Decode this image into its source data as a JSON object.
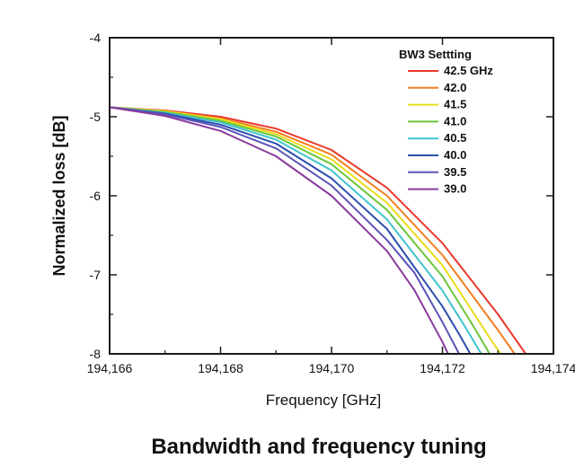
{
  "chart_data": {
    "type": "line",
    "title": "",
    "caption": "Bandwidth and frequency tuning",
    "xlabel": "Frequency  [GHz]",
    "ylabel": "Normalized loss [dB]",
    "xlim": [
      194166,
      194174
    ],
    "ylim": [
      -8,
      -4
    ],
    "xticks": [
      194166,
      194168,
      194170,
      194172,
      194174
    ],
    "xtick_labels": [
      "194,166",
      "194,168",
      "194,170",
      "194,172",
      "194,174"
    ],
    "yticks": [
      -8,
      -7,
      -6,
      -5,
      -4
    ],
    "ytick_labels": [
      "-8",
      "-7",
      "-6",
      "-5",
      "-4"
    ],
    "grid": false,
    "legend": {
      "title": "BW3 Settting",
      "position": "top-right"
    },
    "series": [
      {
        "name": "42.5 GHz",
        "color": "#e8392b",
        "points": [
          [
            194166,
            -4.88
          ],
          [
            194167,
            -4.92
          ],
          [
            194168,
            -5.0
          ],
          [
            194169,
            -5.15
          ],
          [
            194170,
            -5.42
          ],
          [
            194171,
            -5.9
          ],
          [
            194172,
            -6.6
          ],
          [
            194173,
            -7.5
          ],
          [
            194173.5,
            -8.0
          ]
        ]
      },
      {
        "name": "42.0",
        "color": "#f47d20",
        "points": [
          [
            194166,
            -4.88
          ],
          [
            194167,
            -4.93
          ],
          [
            194168,
            -5.02
          ],
          [
            194169,
            -5.19
          ],
          [
            194170,
            -5.48
          ],
          [
            194171,
            -6.0
          ],
          [
            194172,
            -6.75
          ],
          [
            194173,
            -7.7
          ],
          [
            194173.3,
            -8.0
          ]
        ]
      },
      {
        "name": "41.5",
        "color": "#e9dc1d",
        "points": [
          [
            194166,
            -4.88
          ],
          [
            194167,
            -4.93
          ],
          [
            194168,
            -5.03
          ],
          [
            194169,
            -5.22
          ],
          [
            194170,
            -5.54
          ],
          [
            194171,
            -6.09
          ],
          [
            194172,
            -6.88
          ],
          [
            194172.9,
            -7.85
          ],
          [
            194173.05,
            -8.0
          ]
        ]
      },
      {
        "name": "41.0",
        "color": "#6cc63a",
        "points": [
          [
            194166,
            -4.88
          ],
          [
            194167,
            -4.94
          ],
          [
            194168,
            -5.05
          ],
          [
            194169,
            -5.25
          ],
          [
            194170,
            -5.6
          ],
          [
            194171,
            -6.18
          ],
          [
            194172,
            -7.02
          ],
          [
            194172.6,
            -7.7
          ],
          [
            194172.85,
            -8.0
          ]
        ]
      },
      {
        "name": "40.5",
        "color": "#3fc3cf",
        "points": [
          [
            194166,
            -4.88
          ],
          [
            194167,
            -4.95
          ],
          [
            194168,
            -5.07
          ],
          [
            194169,
            -5.29
          ],
          [
            194170,
            -5.68
          ],
          [
            194171,
            -6.3
          ],
          [
            194172,
            -7.2
          ],
          [
            194172.4,
            -7.65
          ],
          [
            194172.7,
            -8.0
          ]
        ]
      },
      {
        "name": "40.0",
        "color": "#2c4eb0",
        "points": [
          [
            194166,
            -4.88
          ],
          [
            194167,
            -4.96
          ],
          [
            194168,
            -5.1
          ],
          [
            194169,
            -5.34
          ],
          [
            194170,
            -5.78
          ],
          [
            194171,
            -6.42
          ],
          [
            194172,
            -7.4
          ],
          [
            194172.3,
            -7.75
          ],
          [
            194172.5,
            -8.0
          ]
        ]
      },
      {
        "name": "39.5",
        "color": "#5a55b8",
        "points": [
          [
            194166,
            -4.88
          ],
          [
            194167,
            -4.97
          ],
          [
            194168,
            -5.13
          ],
          [
            194169,
            -5.4
          ],
          [
            194170,
            -5.87
          ],
          [
            194171,
            -6.56
          ],
          [
            194171.5,
            -6.98
          ],
          [
            194172,
            -7.6
          ],
          [
            194172.3,
            -8.0
          ]
        ]
      },
      {
        "name": "39.0",
        "color": "#8a3a9e",
        "points": [
          [
            194166,
            -4.88
          ],
          [
            194167,
            -4.99
          ],
          [
            194168,
            -5.18
          ],
          [
            194169,
            -5.5
          ],
          [
            194170,
            -6.0
          ],
          [
            194171,
            -6.7
          ],
          [
            194171.5,
            -7.2
          ],
          [
            194172,
            -7.85
          ],
          [
            194172.1,
            -8.0
          ]
        ]
      }
    ]
  }
}
